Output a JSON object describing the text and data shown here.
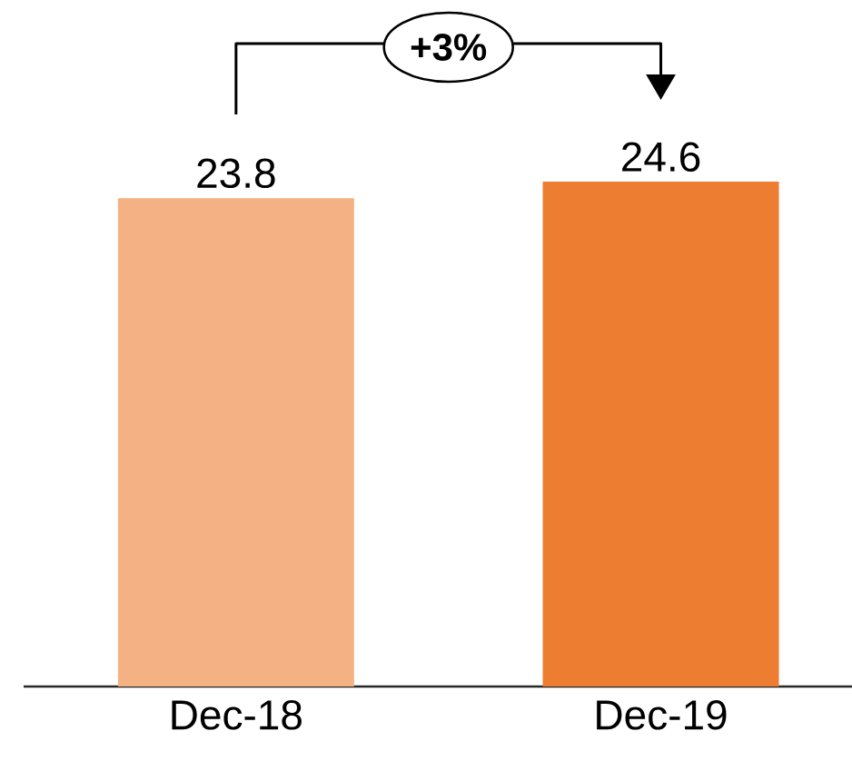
{
  "chart_data": {
    "type": "bar",
    "categories": [
      "Dec-18",
      "Dec-19"
    ],
    "values": [
      23.8,
      24.6
    ],
    "colors": [
      "#f4b183",
      "#ed7d31"
    ],
    "data_labels": true,
    "annotations": [
      "+3%"
    ]
  }
}
